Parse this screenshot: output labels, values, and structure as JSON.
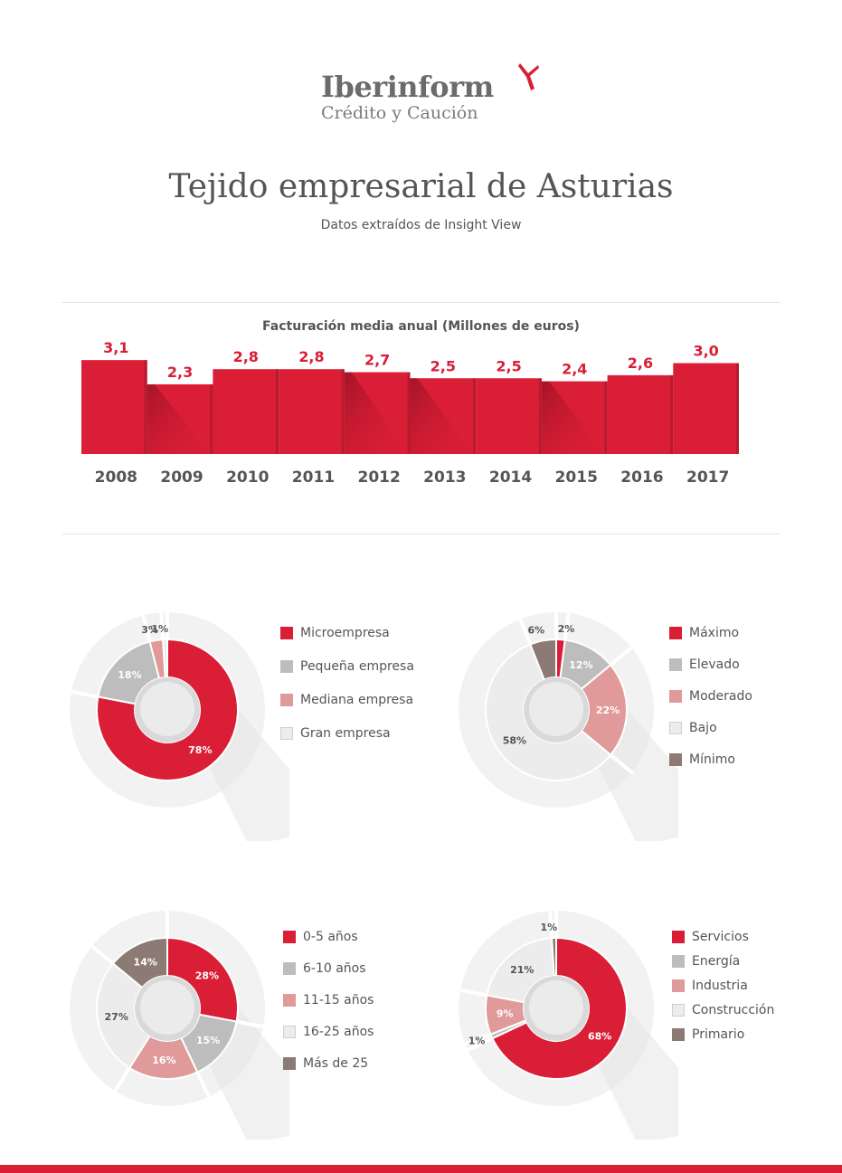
{
  "brand": {
    "name": "Iberinform",
    "tagline": "Crédito y Caución"
  },
  "title": "Tejido empresarial de Asturias",
  "subtitle": "Datos extraídos de Insight View",
  "colors": {
    "red": "#d91e36",
    "grey": "#bdbdbd",
    "pink": "#e09a9a",
    "light": "#ececec",
    "brown": "#8c7b74",
    "text": "#555555"
  },
  "chart_data": [
    {
      "type": "bar",
      "title": "Facturación media anual (Millones de euros)",
      "categories": [
        "2008",
        "2009",
        "2010",
        "2011",
        "2012",
        "2013",
        "2014",
        "2015",
        "2016",
        "2017"
      ],
      "values": [
        3.1,
        2.3,
        2.8,
        2.8,
        2.7,
        2.5,
        2.5,
        2.4,
        2.6,
        3.0
      ],
      "value_labels": [
        "3,1",
        "2,3",
        "2,8",
        "2,8",
        "2,7",
        "2,5",
        "2,5",
        "2,4",
        "2,6",
        "3,0"
      ]
    },
    {
      "type": "pie",
      "categories": [
        "Microempresa",
        "Pequeña empresa",
        "Mediana empresa",
        "Gran empresa"
      ],
      "values": [
        78,
        18,
        3,
        1
      ],
      "value_labels": [
        "78%",
        "18%",
        "3%",
        "1%"
      ],
      "colors": [
        "#d91e36",
        "#bdbdbd",
        "#e09a9a",
        "#ececec"
      ]
    },
    {
      "type": "pie",
      "categories": [
        "Máximo",
        "Elevado",
        "Moderado",
        "Bajo",
        "Mínimo"
      ],
      "values": [
        2,
        12,
        22,
        58,
        6
      ],
      "value_labels": [
        "2%",
        "12%",
        "22%",
        "58%",
        "6%"
      ],
      "colors": [
        "#d91e36",
        "#bdbdbd",
        "#e09a9a",
        "#ececec",
        "#8c7b74"
      ]
    },
    {
      "type": "pie",
      "categories": [
        "0-5 años",
        "6-10 años",
        "11-15 años",
        "16-25 años",
        "Más de 25"
      ],
      "values": [
        28,
        15,
        16,
        27,
        14
      ],
      "value_labels": [
        "28%",
        "15%",
        "16%",
        "27%",
        "14%"
      ],
      "colors": [
        "#d91e36",
        "#bdbdbd",
        "#e09a9a",
        "#ececec",
        "#8c7b74"
      ]
    },
    {
      "type": "pie",
      "categories": [
        "Servicios",
        "Energía",
        "Industria",
        "Construcción",
        "Primario"
      ],
      "values": [
        68,
        1,
        9,
        21,
        1
      ],
      "value_labels": [
        "68%",
        "1%",
        "9%",
        "21%",
        "1%"
      ],
      "colors": [
        "#d91e36",
        "#bdbdbd",
        "#e09a9a",
        "#ececec",
        "#8c7b74"
      ]
    }
  ]
}
